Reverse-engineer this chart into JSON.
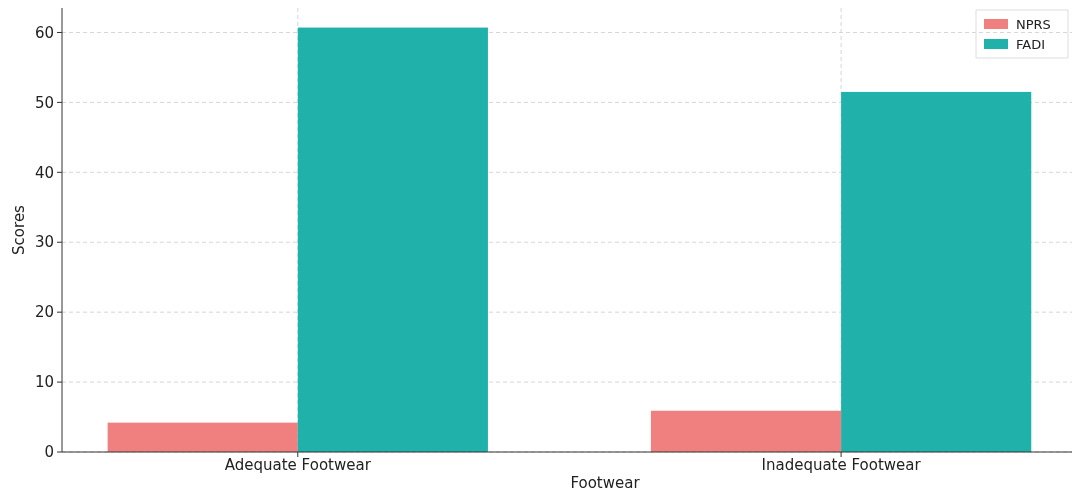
{
  "chart_data": {
    "type": "bar",
    "xlabel": "Footwear",
    "ylabel": "Scores",
    "categories": [
      "Adequate Footwear",
      "Inadequate Footwear"
    ],
    "series": [
      {
        "name": "NPRS",
        "color": "#f08080",
        "values": [
          4.2,
          5.9
        ]
      },
      {
        "name": "FADI",
        "color": "#20b2aa",
        "values": [
          60.7,
          51.5
        ]
      }
    ],
    "ylim": [
      0,
      63.5
    ],
    "yticks": [
      0,
      10,
      20,
      30,
      40,
      50,
      60
    ],
    "grid": true,
    "legend": "top right"
  }
}
